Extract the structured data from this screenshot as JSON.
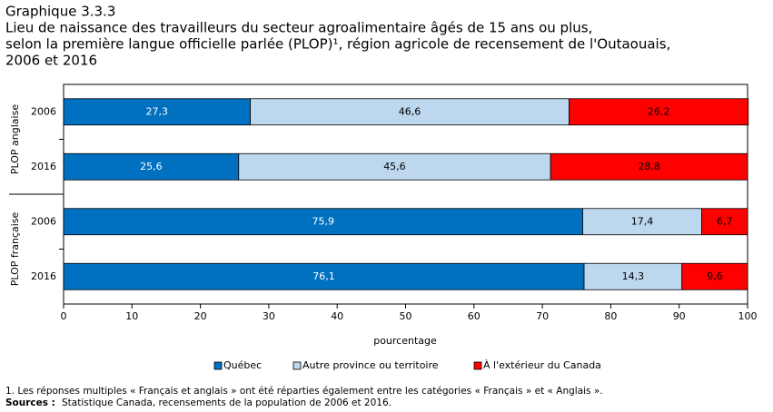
{
  "chart_data": {
    "type": "stacked-bar-horizontal",
    "title": "Graphique 3.3.3",
    "subtitle": [
      "Lieu de naissance des travailleurs du secteur agroalimentaire âgés de 15 ans ou plus,",
      "selon la première langue officielle  parlée (PLOP)¹, région agricole de recensement de l'Outaouais,",
      "2006 et 2016"
    ],
    "groups": [
      {
        "name": "PLOP anglaise",
        "categories": [
          "2006",
          "2016"
        ]
      },
      {
        "name": "PLOP française",
        "categories": [
          "2006",
          "2016"
        ]
      }
    ],
    "series": [
      {
        "name": "Québec",
        "color": "#0070c0",
        "label_color": "#ffffff",
        "values": [
          27.3,
          25.6,
          75.9,
          76.1
        ],
        "value_labels": [
          "27,3",
          "25,6",
          "75,9",
          "76,1"
        ]
      },
      {
        "name": "Autre province ou territoire",
        "color": "#bdd7ee",
        "label_color": "#000000",
        "values": [
          46.6,
          45.6,
          17.4,
          14.3
        ],
        "value_labels": [
          "46,6",
          "45,6",
          "17,4",
          "14,3"
        ]
      },
      {
        "name": "À l'extérieur du Canada",
        "color": "#ff0000",
        "label_color": "#000000",
        "values": [
          26.2,
          28.8,
          6.7,
          9.6
        ],
        "value_labels": [
          "26,2",
          "28,8",
          "6,7",
          "9,6"
        ]
      }
    ],
    "xlabel": "pourcentage",
    "xlim": [
      0,
      100
    ],
    "xticks": [
      0,
      10,
      20,
      30,
      40,
      50,
      60,
      70,
      80,
      90,
      100
    ],
    "legend": "bottom",
    "footnote": "1. Les réponses multiples « Français et anglais » ont été réparties également entre les catégories « Français » et « Anglais ».",
    "sources_label": "Sources :",
    "sources": "Statistique Canada, recensements de la population de 2006 et 2016."
  }
}
